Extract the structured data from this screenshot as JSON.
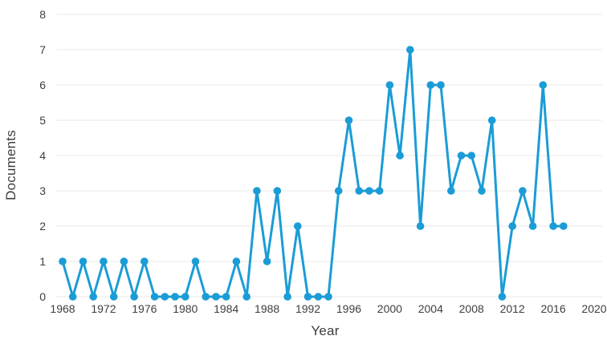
{
  "chart_data": {
    "type": "line",
    "title": "",
    "xlabel": "Year",
    "ylabel": "Documents",
    "x": [
      1968,
      1969,
      1970,
      1971,
      1972,
      1973,
      1974,
      1975,
      1976,
      1977,
      1978,
      1979,
      1980,
      1981,
      1982,
      1983,
      1984,
      1985,
      1986,
      1987,
      1988,
      1989,
      1990,
      1991,
      1992,
      1993,
      1994,
      1995,
      1996,
      1997,
      1998,
      1999,
      2000,
      2001,
      2002,
      2003,
      2004,
      2005,
      2006,
      2007,
      2008,
      2009,
      2010,
      2011,
      2012,
      2013,
      2014,
      2015,
      2016,
      2017
    ],
    "series": [
      {
        "name": "Documents",
        "values": [
          1,
          0,
          1,
          0,
          1,
          0,
          1,
          0,
          1,
          0,
          0,
          0,
          0,
          1,
          0,
          0,
          0,
          1,
          0,
          3,
          1,
          3,
          0,
          2,
          0,
          0,
          0,
          3,
          5,
          3,
          3,
          3,
          6,
          4,
          7,
          2,
          6,
          6,
          3,
          4,
          4,
          3,
          5,
          0,
          2,
          3,
          2,
          6,
          2,
          2
        ]
      }
    ],
    "x_ticks": [
      1968,
      1972,
      1976,
      1980,
      1984,
      1988,
      1992,
      1996,
      2000,
      2004,
      2008,
      2012,
      2016,
      2020
    ],
    "y_ticks": [
      0,
      1,
      2,
      3,
      4,
      5,
      6,
      7,
      8
    ],
    "xlim": [
      1968,
      2020
    ],
    "ylim": [
      0,
      8
    ],
    "grid": "horizontal-only",
    "legend": "none",
    "line_color": "#1b9cd6",
    "marker": "circle",
    "gridline_color": "#e8e8e8",
    "text_color": "#3e3e3e",
    "background_color": "#ffffff"
  }
}
